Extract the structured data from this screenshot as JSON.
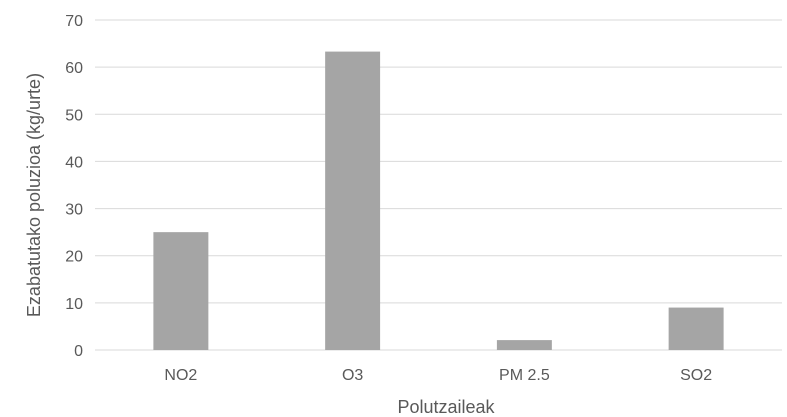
{
  "chart_data": {
    "type": "bar",
    "title": "",
    "xlabel": "Polutzaileak",
    "ylabel": "Ezabatutako poluzioa (kg/urte)",
    "categories": [
      "NO2",
      "O3",
      "PM 2.5",
      "SO2"
    ],
    "values": [
      25,
      63.3,
      2.1,
      9
    ],
    "ylim": [
      0,
      70
    ],
    "yticks": [
      0,
      10,
      20,
      30,
      40,
      50,
      60,
      70
    ],
    "grid": true,
    "bar_color": "#a5a5a5",
    "grid_color": "#d9d9d9"
  }
}
